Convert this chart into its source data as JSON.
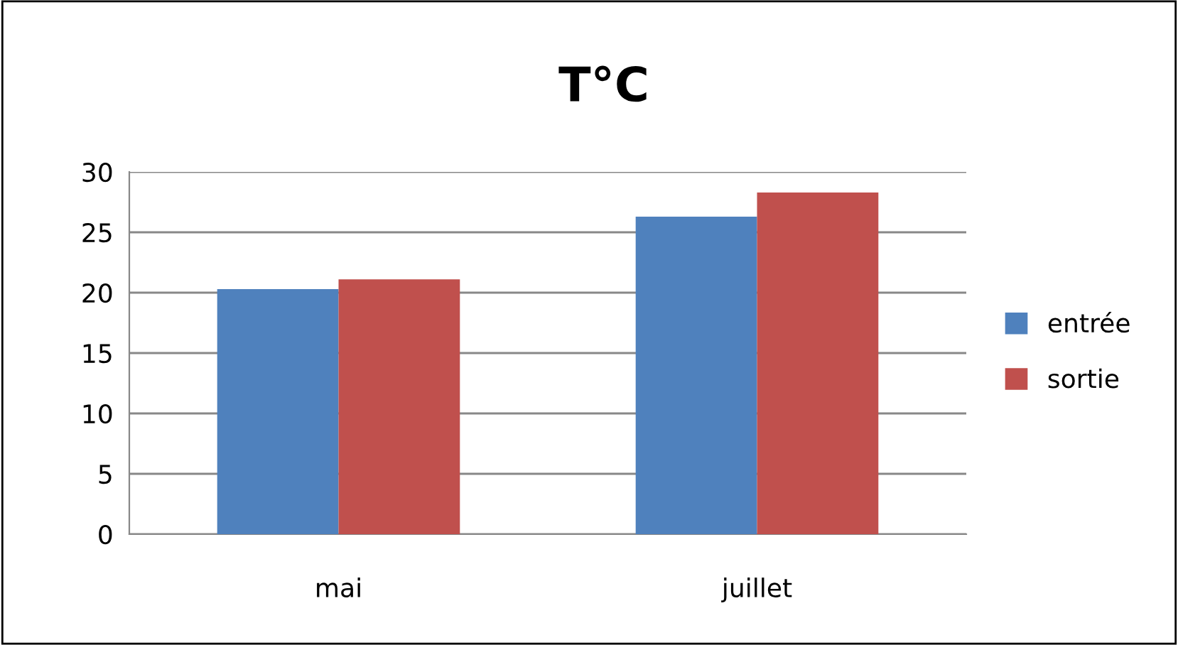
{
  "chart_data": {
    "type": "bar",
    "title": "T°C",
    "categories": [
      "mai",
      "juillet"
    ],
    "series": [
      {
        "name": "entrée",
        "color": "#4f81bd",
        "values": [
          20.3,
          26.3
        ]
      },
      {
        "name": "sortie",
        "color": "#c0504d",
        "values": [
          21.1,
          28.3
        ]
      }
    ],
    "ylim": [
      0,
      30
    ],
    "yticks": [
      0,
      5,
      10,
      15,
      20,
      25,
      30
    ],
    "grid": "y",
    "legend": "right"
  }
}
